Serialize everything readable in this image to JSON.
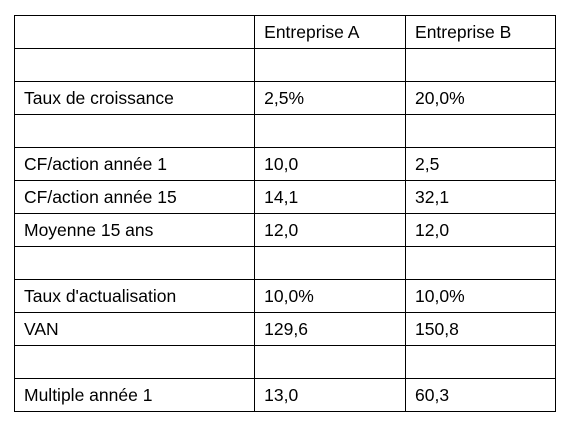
{
  "table": {
    "header": [
      "Entreprise A",
      "Entreprise B"
    ],
    "rows": [
      [
        "Taux de croissance",
        "2,5%",
        "20,0%"
      ],
      [
        "CF/action année 1",
        "10,0",
        "2,5"
      ],
      [
        "CF/action année 15",
        "14,1",
        "32,1"
      ],
      [
        "Moyenne 15 ans",
        "12,0",
        "12,0"
      ],
      [
        "Taux d'actualisation",
        "10,0%",
        "10,0%"
      ],
      [
        "VAN",
        "129,6",
        "150,8"
      ],
      [
        "Multiple année 1",
        "13,0",
        "60,3"
      ]
    ]
  }
}
